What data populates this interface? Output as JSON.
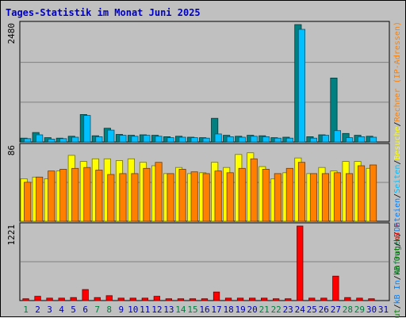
{
  "title": "Tages-Statistik im Monat Juni 2025",
  "right_legend": {
    "top": [
      {
        "text": "Anfragen",
        "color": "#008040"
      },
      {
        "text": "/",
        "color": "#000000"
      },
      {
        "text": "Dateien",
        "color": "#0080ff"
      },
      {
        "text": "/",
        "color": "#000000"
      },
      {
        "text": "Seiten",
        "color": "#00c0ff"
      },
      {
        "text": "/",
        "color": "#000000"
      },
      {
        "text": "Besuche",
        "color": "#ffff00"
      },
      {
        "text": "/",
        "color": "#000000"
      },
      {
        "text": "Rechner (IP-Adressen)",
        "color": "#ff8000"
      }
    ],
    "bottom": [
      {
        "text": "Out",
        "color": "#008000"
      },
      {
        "text": "/",
        "color": "#000000"
      },
      {
        "text": "kB In",
        "color": "#0080ff"
      },
      {
        "text": "/",
        "color": "#000000"
      },
      {
        "text": "kB Out",
        "color": "#008000"
      },
      {
        "text": "/",
        "color": "#000000"
      },
      {
        "text": "kB F",
        "color": "#ff0000"
      }
    ]
  },
  "chart_data": {
    "type": "bar",
    "title": "Tages-Statistik im Monat Juni 2025",
    "categories": [
      "1",
      "2",
      "3",
      "4",
      "5",
      "6",
      "7",
      "8",
      "9",
      "10",
      "11",
      "12",
      "13",
      "14",
      "15",
      "16",
      "17",
      "18",
      "19",
      "20",
      "21",
      "22",
      "23",
      "24",
      "25",
      "26",
      "27",
      "28",
      "29",
      "30",
      "31"
    ],
    "weekend_days": [
      "1",
      "7",
      "8",
      "14",
      "15",
      "21",
      "22",
      "28",
      "29"
    ],
    "colors": {
      "weekend_label": "#008040",
      "weekday_label": "#0000c0"
    },
    "panels": [
      {
        "name": "hits-files",
        "ymax_label": "2480",
        "ymax": 2480,
        "series": [
          {
            "name": "Anfragen",
            "color": "#008080",
            "values": [
              80,
              200,
              90,
              80,
              120,
              580,
              130,
              290,
              160,
              140,
              150,
              140,
              110,
              120,
              100,
              90,
              500,
              140,
              120,
              140,
              130,
              90,
              100,
              2480,
              110,
              150,
              1350,
              180,
              140,
              120,
              0
            ]
          },
          {
            "name": "Dateien",
            "color": "#00c0ff",
            "values": [
              70,
              150,
              60,
              70,
              100,
              560,
              110,
              250,
              140,
              120,
              140,
              120,
              90,
              100,
              90,
              80,
              170,
              110,
              100,
              120,
              110,
              80,
              80,
              2380,
              80,
              140,
              240,
              90,
              110,
              100,
              0
            ]
          }
        ]
      },
      {
        "name": "visits-sites",
        "ymax_label": "86",
        "ymax": 86,
        "series": [
          {
            "name": "Besuche",
            "color": "#ffff00",
            "values": [
              49,
              51,
              49,
              58,
              76,
              69,
              72,
              72,
              70,
              72,
              68,
              64,
              55,
              62,
              55,
              56,
              68,
              62,
              77,
              79,
              63,
              49,
              56,
              73,
              55,
              62,
              58,
              69,
              69,
              61,
              0
            ]
          },
          {
            "name": "Rechner",
            "color": "#ff8000",
            "values": [
              45,
              51,
              58,
              60,
              61,
              62,
              59,
              54,
              55,
              55,
              61,
              68,
              55,
              60,
              57,
              55,
              58,
              56,
              61,
              72,
              60,
              55,
              61,
              68,
              55,
              55,
              56,
              55,
              64,
              65,
              0
            ]
          }
        ]
      },
      {
        "name": "kbytes",
        "ymax_label": "1221",
        "ymax": 1221,
        "series": [
          {
            "name": "kB F",
            "color": "#ff0000",
            "values": [
              30,
              70,
              40,
              40,
              50,
              180,
              50,
              80,
              40,
              40,
              40,
              70,
              30,
              30,
              30,
              30,
              140,
              40,
              40,
              40,
              40,
              30,
              30,
              1221,
              40,
              40,
              400,
              50,
              40,
              30,
              0
            ]
          }
        ]
      }
    ]
  }
}
